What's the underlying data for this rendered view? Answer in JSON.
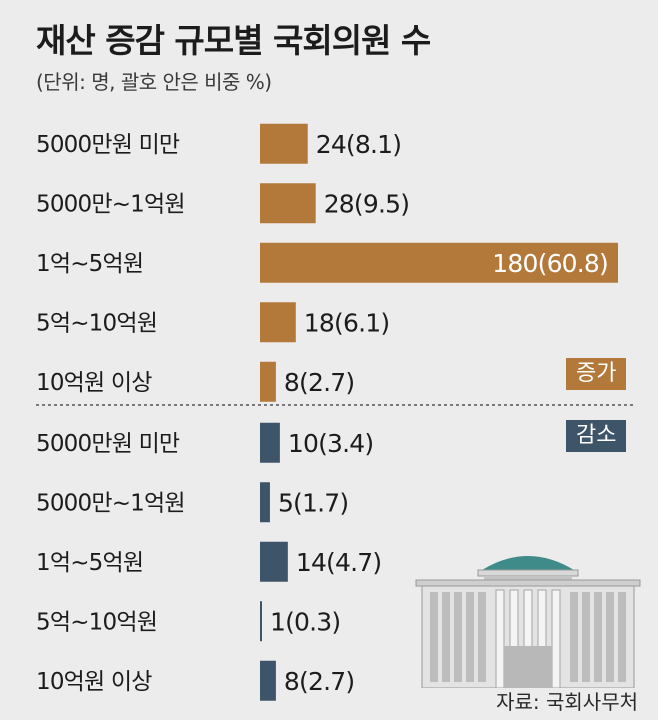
{
  "title": "재산 증감 규모별 국회의원 수",
  "unit_note": "(단위: 명, 괄호 안은 비중 %)",
  "source": "자료: 국회사무처",
  "badges": {
    "increase": "증가",
    "decrease": "감소"
  },
  "colors": {
    "increase": "#b3793a",
    "decrease": "#3e5569",
    "background": "#ececec",
    "divider": "#555555"
  },
  "icons": [
    "national-assembly-building-icon"
  ],
  "chart_data": {
    "type": "bar",
    "orientation": "horizontal",
    "categories": [
      "5000만원 미만",
      "5000만~1억원",
      "1억~5억원",
      "5억~10억원",
      "10억원 이상"
    ],
    "series": [
      {
        "name": "증가",
        "values": [
          24,
          28,
          180,
          18,
          8
        ],
        "shares": [
          8.1,
          9.5,
          60.8,
          6.1,
          2.7
        ],
        "labels": [
          "24(8.1)",
          "28(9.5)",
          "180(60.8)",
          "18(6.1)",
          "8(2.7)"
        ]
      },
      {
        "name": "감소",
        "values": [
          10,
          5,
          14,
          1,
          8
        ],
        "shares": [
          3.4,
          1.7,
          4.7,
          0.3,
          2.7
        ],
        "labels": [
          "10(3.4)",
          "5(1.7)",
          "14(4.7)",
          "1(0.3)",
          "8(2.7)"
        ]
      }
    ],
    "xlim": [
      0,
      180
    ],
    "grid": false,
    "legend": "right"
  }
}
